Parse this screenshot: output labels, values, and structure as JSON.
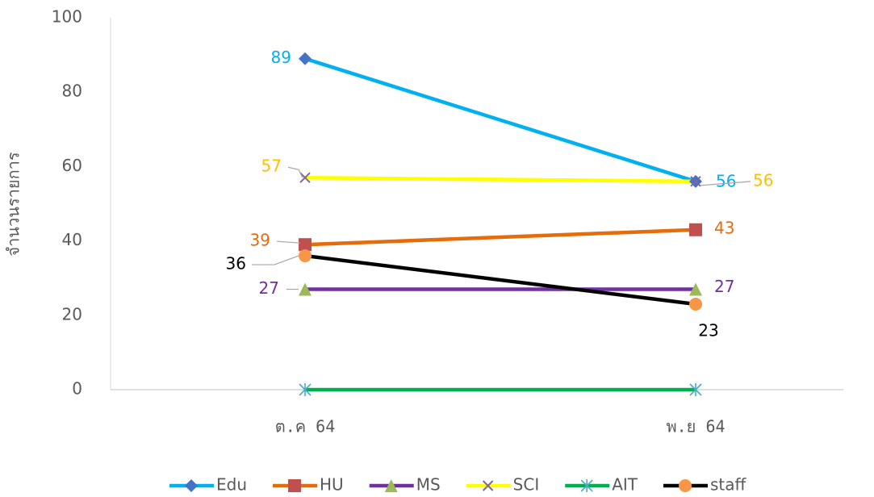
{
  "chart_data": {
    "type": "line",
    "y_axis_label": "จำนวนรายการ",
    "categories": [
      "ต.ค 64",
      "พ.ย 64"
    ],
    "ylim": [
      0,
      100
    ],
    "yticks": [
      0,
      20,
      40,
      60,
      80,
      100
    ],
    "grid": false,
    "legend": "bottom",
    "series": [
      {
        "name": "Edu",
        "color": "#00b0f0",
        "marker": "diamond",
        "marker_color": "#4472c4",
        "label_color": "#00b0f0",
        "data_labels": true,
        "values": [
          89,
          56
        ]
      },
      {
        "name": "HU",
        "color": "#e46c0a",
        "marker": "square",
        "marker_color": "#c0504d",
        "label_color": "#e46c0a",
        "data_labels": true,
        "values": [
          39,
          43
        ]
      },
      {
        "name": "MS",
        "color": "#7030a0",
        "marker": "triangle",
        "marker_color": "#9bbb59",
        "label_color": "#7030a0",
        "data_labels": true,
        "values": [
          27,
          27
        ]
      },
      {
        "name": "SCI",
        "color": "#ffff00",
        "marker": "x",
        "marker_color": "#8064a2",
        "label_color": "#ffc000",
        "data_labels": true,
        "values": [
          57,
          56
        ]
      },
      {
        "name": "AIT",
        "color": "#00b050",
        "marker": "star",
        "marker_color": "#4bacc6",
        "label_color": "#00b050",
        "data_labels": false,
        "values": [
          0,
          0
        ]
      },
      {
        "name": "staff",
        "color": "#000000",
        "marker": "circle",
        "marker_color": "#f79646",
        "label_color": "#000000",
        "data_labels": true,
        "values": [
          36,
          23
        ]
      }
    ]
  }
}
